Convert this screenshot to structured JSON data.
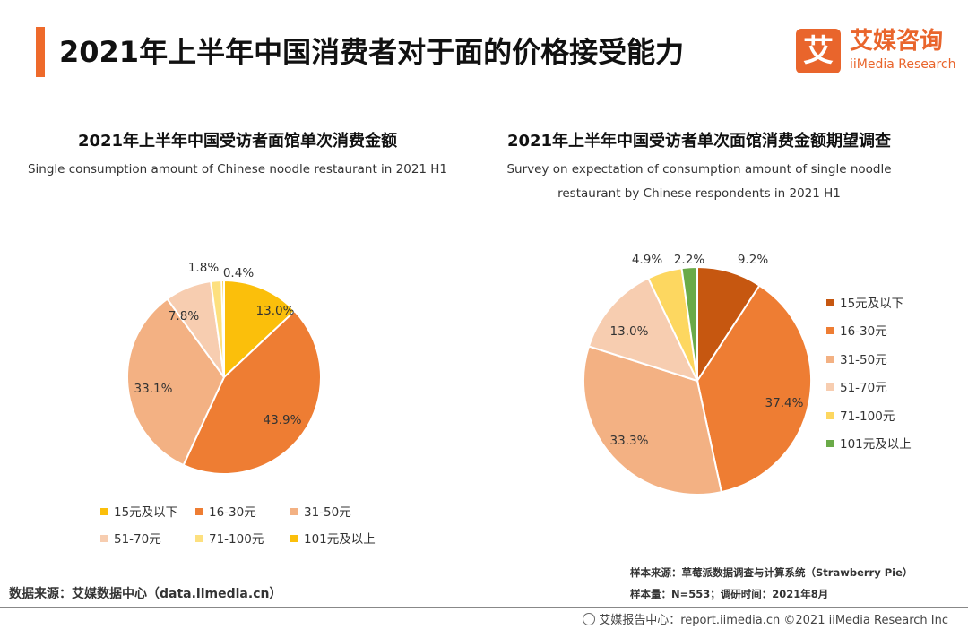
{
  "header": {
    "title": "2021年上半年中国消费者对于面的价格接受能力",
    "logo_mark": "艾",
    "logo_cn": "艾媒咨询",
    "logo_en": "iiMedia Research"
  },
  "chart_data": [
    {
      "type": "pie",
      "title": "2021年上半年中国受访者面馆单次消费金额",
      "subtitle": "Single consumption amount of Chinese noodle restaurant in 2021 H1",
      "unit": "%",
      "categories": [
        "15元及以下",
        "16-30元",
        "31-50元",
        "51-70元",
        "71-100元",
        "101元及以上"
      ],
      "values": [
        13.0,
        43.9,
        33.1,
        7.8,
        1.8,
        0.4
      ],
      "labels": [
        "13.0%",
        "43.9%",
        "33.1%",
        "7.8%",
        "1.8%",
        "0.4%"
      ],
      "colors": [
        "#fbbf0b",
        "#ee7d33",
        "#f3b183",
        "#f7cdb0",
        "#fde07f",
        "#fbbf0b"
      ],
      "legend_position": "bottom"
    },
    {
      "type": "pie",
      "title": "2021年上半年中国受访者单次面馆消费金额期望调查",
      "subtitle": "Survey on expectation of consumption amount of single noodle restaurant by Chinese respondents in 2021 H1",
      "unit": "%",
      "categories": [
        "15元及以下",
        "16-30元",
        "31-50元",
        "51-70元",
        "71-100元",
        "101元及以上"
      ],
      "values": [
        9.2,
        37.4,
        33.3,
        13.0,
        4.9,
        2.2
      ],
      "labels": [
        "9.2%",
        "37.4%",
        "33.3%",
        "13.0%",
        "4.9%",
        "2.2%"
      ],
      "colors": [
        "#c65710",
        "#ee7d33",
        "#f3b183",
        "#f7cdb0",
        "#fdd760",
        "#6aaa48"
      ],
      "legend_position": "right"
    }
  ],
  "footer": {
    "source": "数据来源：艾媒数据中心（data.iimedia.cn）",
    "sample_source": "样本来源：草莓派数据调查与计算系统（Strawberry Pie）",
    "sample_size": "样本量：N=553；调研时间：2021年8月",
    "copyright": "艾媒报告中心：report.iimedia.cn ©2021  iiMedia Research  Inc"
  }
}
